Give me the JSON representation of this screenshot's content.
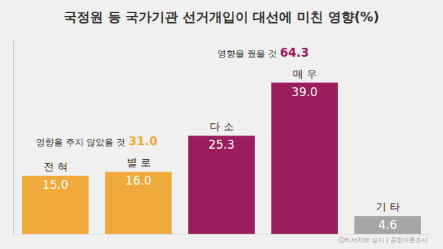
{
  "chart_data": {
    "type": "bar",
    "title": "국정원 등 국가기관 선거개입이 대선에 미친 영향(%)",
    "categories": [
      "전 혀",
      "별 로",
      "다 소",
      "매 우",
      "기 타"
    ],
    "values": [
      15.0,
      16.0,
      25.3,
      39.0,
      4.6
    ],
    "value_labels": [
      "15.0",
      "16.0",
      "25.3",
      "39.0",
      "4.6"
    ],
    "colors": [
      "#f0a93b",
      "#f0a93b",
      "#9c1d5d",
      "#9c1d5d",
      "#a6a6a6"
    ],
    "data_labels": true,
    "ylim": [
      0,
      50
    ],
    "tick_labels": false,
    "grid": false,
    "annotations": [
      {
        "text": "영향을 주지 않았을 것",
        "value": 31.0,
        "value_label": "31.0",
        "color": "#f0a93b"
      },
      {
        "text": "영향을 줬을 것",
        "value": 64.3,
        "value_label": "64.3",
        "color": "#9c1d5d"
      }
    ],
    "source": "ⓒ리서치뷰 실시 | 공정여론조사"
  }
}
